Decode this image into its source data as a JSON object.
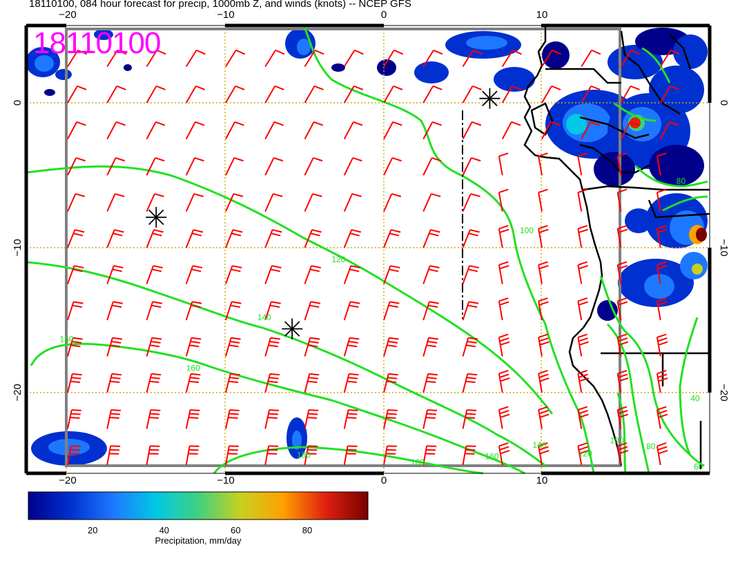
{
  "title": "18110100, 084 hour forecast for precip, 1000mb Z, and winds (knots) -- NCEP GFS",
  "stamp": "18110100",
  "axes": {
    "x_ticks": [
      {
        "label": "−20",
        "value": -20
      },
      {
        "label": "−10",
        "value": -10
      },
      {
        "label": "0",
        "value": 0
      },
      {
        "label": "10",
        "value": 10
      }
    ],
    "y_ticks": [
      {
        "label": "0",
        "value": 0
      },
      {
        "label": "−10",
        "value": -10
      },
      {
        "label": "−20",
        "value": -20
      }
    ]
  },
  "contour_labels": [
    {
      "text": "160",
      "lon": -20.5,
      "lat": -16.5
    },
    {
      "text": "160",
      "lon": -12.5,
      "lat": -18.5
    },
    {
      "text": "140",
      "lon": -8.0,
      "lat": -15.0
    },
    {
      "text": "120",
      "lon": -3.3,
      "lat": -11.0
    },
    {
      "text": "100",
      "lon": 8.6,
      "lat": -9.0
    },
    {
      "text": "80",
      "lon": 18.5,
      "lat": -5.6
    },
    {
      "text": "40",
      "lon": 19.4,
      "lat": -20.6
    },
    {
      "text": "60",
      "lon": 19.6,
      "lat": -25.3
    },
    {
      "text": "180",
      "lon": -5.5,
      "lat": -24.5
    },
    {
      "text": "180",
      "lon": 1.7,
      "lat": -25.0
    },
    {
      "text": "160",
      "lon": 6.4,
      "lat": -24.6
    },
    {
      "text": "140",
      "lon": 9.4,
      "lat": -23.8
    },
    {
      "text": "120",
      "lon": 12.3,
      "lat": -24.4
    },
    {
      "text": "100",
      "lon": 14.3,
      "lat": -23.5
    },
    {
      "text": "80",
      "lon": 16.6,
      "lat": -23.9
    }
  ],
  "markers": [
    {
      "name": "marker-west",
      "lon": -14.4,
      "lat": -7.9
    },
    {
      "name": "marker-center",
      "lon": -5.8,
      "lat": -15.6
    },
    {
      "name": "marker-northeast",
      "lon": 6.7,
      "lat": 0.3
    }
  ],
  "colorbar": {
    "label": "Precipitation, mm/day",
    "ticks": [
      {
        "label": "20",
        "value": 20
      },
      {
        "label": "40",
        "value": 40
      },
      {
        "label": "60",
        "value": 60
      },
      {
        "label": "80",
        "value": 80
      }
    ],
    "min": 2,
    "max": 97,
    "colors": [
      "#00008b",
      "#0030d0",
      "#1e78ff",
      "#00c8e6",
      "#40d080",
      "#c8d020",
      "#ffa000",
      "#e02010",
      "#780000"
    ]
  },
  "colors": {
    "contour": "#22e022",
    "barb": "#ff0000",
    "grid": "#ccaa00",
    "stamp": "#ff00ff",
    "coast": "#000000",
    "frame": "#808080"
  },
  "wind_field": {
    "description": "Wind barbs (knots) at regular lon/lat grid points over the ocean, from the southeast turning south near the coast",
    "lon_range": [
      -20,
      17.5
    ],
    "lat_range": [
      2.5,
      -25
    ],
    "spacing_deg": 2.5
  }
}
